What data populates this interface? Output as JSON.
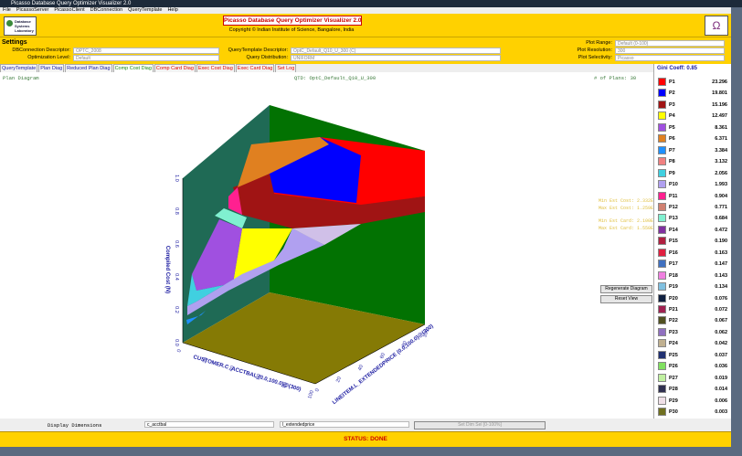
{
  "window": {
    "title": "Picasso Database Query Optimizer Visualizer 2.0"
  },
  "menu": [
    "File",
    "PicassoServer",
    "PicassoClient",
    "DBConnection",
    "QueryTemplate",
    "Help"
  ],
  "header": {
    "logo": "Database Systems Laboratory",
    "title": "Picasso Database Query Optimizer Visualizer 2.0",
    "copyright": "Copyright © Indian Institute of Science, Bangalore, India"
  },
  "settings": {
    "heading": "Settings",
    "fields": [
      {
        "label": "DBConnection Descriptor:",
        "value": "OPTC_2008"
      },
      {
        "label": "Optimization Level:",
        "value": "Default"
      },
      {
        "label": "QueryTemplate Descriptor:",
        "value": "OptC_Default_Q10_U_300   (C)"
      },
      {
        "label": "Query Distribution:",
        "value": "UNIFORM"
      },
      {
        "label": "Plot Range:",
        "value": "Default (0-100)"
      },
      {
        "label": "Plot Resolution:",
        "value": "300"
      },
      {
        "label": "Plot Selectivity:",
        "value": "Picasso"
      }
    ]
  },
  "tabs": [
    {
      "label": "QueryTemplate",
      "active": false
    },
    {
      "label": "Plan Diag",
      "active": false
    },
    {
      "label": "Reduced Plan Diag",
      "active": false
    },
    {
      "label": "Comp Cost Diag",
      "active": true
    },
    {
      "label": "Comp Card Diag",
      "active": false
    },
    {
      "label": "Exec Cost Diag",
      "active": false
    },
    {
      "label": "Exec Card Diag",
      "active": false
    },
    {
      "label": "Set Log",
      "active": false
    }
  ],
  "diagram": {
    "name": "Plan Diagram",
    "qtd": "QTD: OptC_Default_Q10_U_300",
    "plans": "# of Plans: 30",
    "z_label": "Compiled Cost (N)",
    "x_label": "CUSTOMER.C_ACCTBAL (0.0,100.0)@(300)",
    "y_label": "LINEITEM.L_EXTENDEDPRICE (0.0,100.0)@(300)",
    "z_ticks": [
      "0.0",
      "0.2",
      "0.4",
      "0.6",
      "0.8",
      "1.0"
    ],
    "x_ticks": [
      "0",
      "20",
      "40",
      "60",
      "80",
      "100"
    ],
    "y_ticks": [
      "0",
      "20",
      "40",
      "60",
      "80",
      "100"
    ],
    "stats": [
      "Min Est Cost: 2.332E3",
      "Max Est Cost: 1.259E6",
      "Min Est Card: 2.100E1",
      "Max Est Card: 1.550E5"
    ]
  },
  "buttons": [
    "Regenerate Diagram",
    "Reset View"
  ],
  "legend": {
    "gini": "Gini Coeff: 0.85",
    "plans": [
      {
        "name": "P1",
        "color": "#ff0000",
        "value": "23.296"
      },
      {
        "name": "P2",
        "color": "#0000ff",
        "value": "19.801"
      },
      {
        "name": "P3",
        "color": "#a01414",
        "value": "15.196"
      },
      {
        "name": "P4",
        "color": "#ffff00",
        "value": "12.497"
      },
      {
        "name": "P5",
        "color": "#a050e0",
        "value": "8.361"
      },
      {
        "name": "P6",
        "color": "#e08020",
        "value": "6.371"
      },
      {
        "name": "P7",
        "color": "#1e90ff",
        "value": "3.384"
      },
      {
        "name": "P8",
        "color": "#f08080",
        "value": "3.132"
      },
      {
        "name": "P9",
        "color": "#40d0e0",
        "value": "2.056"
      },
      {
        "name": "P10",
        "color": "#b0a0f0",
        "value": "1.993"
      },
      {
        "name": "P11",
        "color": "#ff2090",
        "value": "0.904"
      },
      {
        "name": "P12",
        "color": "#d08070",
        "value": "0.771"
      },
      {
        "name": "P13",
        "color": "#80f0d0",
        "value": "0.684"
      },
      {
        "name": "P14",
        "color": "#8030a0",
        "value": "0.472"
      },
      {
        "name": "P15",
        "color": "#b02040",
        "value": "0.190"
      },
      {
        "name": "P16",
        "color": "#e02040",
        "value": "0.163"
      },
      {
        "name": "P17",
        "color": "#4070c0",
        "value": "0.147"
      },
      {
        "name": "P18",
        "color": "#f080e0",
        "value": "0.143"
      },
      {
        "name": "P19",
        "color": "#80c0e0",
        "value": "0.134"
      },
      {
        "name": "P20",
        "color": "#102040",
        "value": "0.076"
      },
      {
        "name": "P21",
        "color": "#a02050",
        "value": "0.072"
      },
      {
        "name": "P22",
        "color": "#505020",
        "value": "0.067"
      },
      {
        "name": "P23",
        "color": "#9070c0",
        "value": "0.062"
      },
      {
        "name": "P24",
        "color": "#c0b090",
        "value": "0.042"
      },
      {
        "name": "P25",
        "color": "#203070",
        "value": "0.037"
      },
      {
        "name": "P26",
        "color": "#80e060",
        "value": "0.036"
      },
      {
        "name": "P27",
        "color": "#c0f0a0",
        "value": "0.019"
      },
      {
        "name": "P28",
        "color": "#303050",
        "value": "0.014"
      },
      {
        "name": "P29",
        "color": "#f0e0e8",
        "value": "0.006"
      },
      {
        "name": "P30",
        "color": "#707020",
        "value": "0.003"
      }
    ]
  },
  "footer": {
    "display_dimensions": "Display Dimensions",
    "dim1": "c_acctbal",
    "dim2": "l_extendedprice",
    "set_dim": "Set Dim Sel [0-100%]",
    "status": "STATUS: DONE"
  }
}
